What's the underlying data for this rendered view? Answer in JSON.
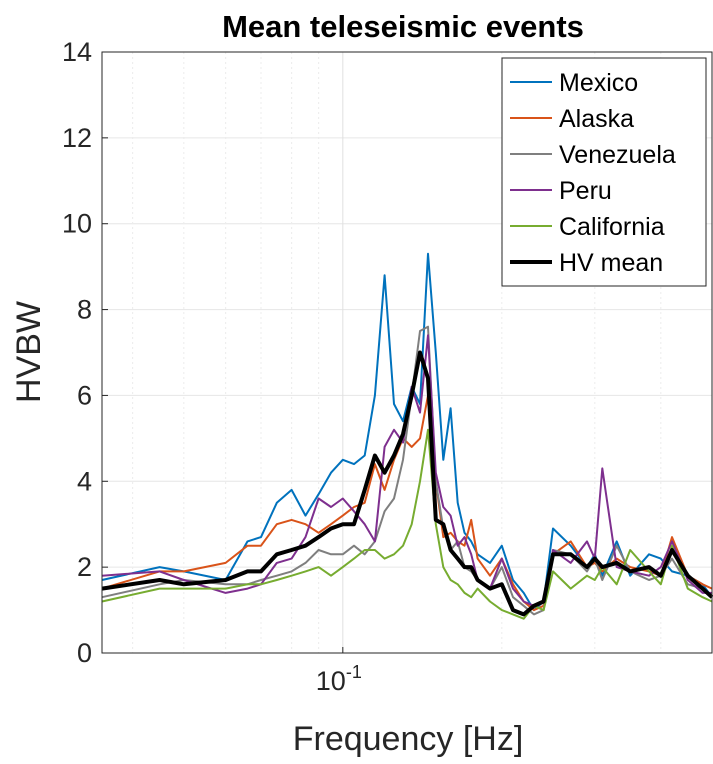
{
  "chart_data": {
    "type": "line",
    "title": "Mean teleseismic events",
    "xlabel": "Frequency [Hz]",
    "ylabel": "HVBW",
    "xscale": "log",
    "xlim": [
      0.035,
      0.5
    ],
    "ylim": [
      0,
      14
    ],
    "yticks": [
      0,
      2,
      4,
      6,
      8,
      10,
      12,
      14
    ],
    "ytick_labels": [
      "0",
      "2",
      "4",
      "6",
      "8",
      "10",
      "12",
      "14"
    ],
    "xticks": [
      0.1
    ],
    "xtick_labels": [
      {
        "base": "10",
        "exp": "-1"
      }
    ],
    "grid": true,
    "legend_position": "top-right",
    "series": [
      {
        "name": "Mexico",
        "color": "#0072BD",
        "line_width": 2,
        "x": [
          0.035,
          0.045,
          0.05,
          0.06,
          0.066,
          0.07,
          0.075,
          0.08,
          0.085,
          0.09,
          0.095,
          0.1,
          0.105,
          0.11,
          0.115,
          0.12,
          0.125,
          0.13,
          0.135,
          0.14,
          0.145,
          0.15,
          0.155,
          0.16,
          0.165,
          0.17,
          0.175,
          0.18,
          0.19,
          0.2,
          0.21,
          0.22,
          0.23,
          0.24,
          0.25,
          0.27,
          0.29,
          0.3,
          0.31,
          0.33,
          0.35,
          0.38,
          0.4,
          0.42,
          0.45,
          0.48,
          0.5
        ],
        "y": [
          1.7,
          2.0,
          1.9,
          1.7,
          2.6,
          2.7,
          3.5,
          3.8,
          3.2,
          3.7,
          4.2,
          4.5,
          4.4,
          4.6,
          6.0,
          8.8,
          5.8,
          5.4,
          6.2,
          5.8,
          9.3,
          7.0,
          4.5,
          5.7,
          3.5,
          2.8,
          2.6,
          2.3,
          2.1,
          2.5,
          1.7,
          1.4,
          1.0,
          1.2,
          2.9,
          2.5,
          2.0,
          2.3,
          1.8,
          2.6,
          1.8,
          2.3,
          2.2,
          1.9,
          1.8,
          1.6,
          1.3
        ]
      },
      {
        "name": "Alaska",
        "color": "#D95319",
        "line_width": 2,
        "x": [
          0.035,
          0.045,
          0.05,
          0.06,
          0.066,
          0.07,
          0.075,
          0.08,
          0.085,
          0.09,
          0.095,
          0.1,
          0.105,
          0.11,
          0.115,
          0.12,
          0.125,
          0.13,
          0.135,
          0.14,
          0.145,
          0.15,
          0.155,
          0.16,
          0.165,
          0.17,
          0.175,
          0.18,
          0.19,
          0.2,
          0.21,
          0.22,
          0.23,
          0.24,
          0.25,
          0.27,
          0.29,
          0.3,
          0.31,
          0.33,
          0.35,
          0.38,
          0.4,
          0.42,
          0.45,
          0.48,
          0.5
        ],
        "y": [
          1.5,
          1.9,
          1.9,
          2.1,
          2.5,
          2.5,
          3.0,
          3.1,
          3.0,
          2.8,
          3.0,
          3.2,
          3.4,
          3.5,
          4.4,
          3.8,
          4.5,
          5.0,
          4.8,
          5.0,
          6.0,
          4.0,
          2.7,
          2.8,
          2.6,
          2.5,
          3.1,
          2.2,
          1.8,
          2.2,
          1.6,
          1.2,
          1.0,
          1.1,
          2.3,
          2.6,
          2.0,
          2.1,
          1.9,
          2.2,
          2.0,
          1.9,
          1.8,
          2.7,
          1.8,
          1.6,
          1.5
        ]
      },
      {
        "name": "Venezuela",
        "color": "#7F7F7F",
        "line_width": 2,
        "x": [
          0.035,
          0.045,
          0.05,
          0.06,
          0.066,
          0.07,
          0.075,
          0.08,
          0.085,
          0.09,
          0.095,
          0.1,
          0.105,
          0.11,
          0.115,
          0.12,
          0.125,
          0.13,
          0.135,
          0.14,
          0.145,
          0.15,
          0.155,
          0.16,
          0.165,
          0.17,
          0.175,
          0.18,
          0.19,
          0.2,
          0.21,
          0.22,
          0.23,
          0.24,
          0.25,
          0.27,
          0.29,
          0.3,
          0.31,
          0.33,
          0.35,
          0.38,
          0.4,
          0.42,
          0.45,
          0.48,
          0.5
        ],
        "y": [
          1.3,
          1.6,
          1.7,
          1.6,
          1.6,
          1.7,
          1.8,
          1.9,
          2.1,
          2.4,
          2.3,
          2.3,
          2.5,
          2.3,
          2.6,
          3.3,
          3.6,
          4.5,
          6.0,
          7.5,
          7.6,
          4.0,
          2.9,
          2.4,
          2.6,
          2.0,
          1.9,
          1.7,
          1.5,
          2.0,
          1.3,
          1.1,
          0.9,
          1.0,
          2.4,
          2.3,
          1.9,
          2.2,
          1.7,
          2.5,
          1.9,
          1.7,
          1.8,
          2.2,
          1.6,
          1.5,
          1.3
        ]
      },
      {
        "name": "Peru",
        "color": "#7E2F8E",
        "line_width": 2,
        "x": [
          0.035,
          0.045,
          0.05,
          0.06,
          0.066,
          0.07,
          0.075,
          0.08,
          0.085,
          0.09,
          0.095,
          0.1,
          0.105,
          0.11,
          0.115,
          0.12,
          0.125,
          0.13,
          0.135,
          0.14,
          0.145,
          0.15,
          0.155,
          0.16,
          0.165,
          0.17,
          0.175,
          0.18,
          0.19,
          0.2,
          0.21,
          0.22,
          0.23,
          0.24,
          0.25,
          0.27,
          0.29,
          0.3,
          0.31,
          0.33,
          0.35,
          0.38,
          0.4,
          0.42,
          0.45,
          0.48,
          0.5
        ],
        "y": [
          1.8,
          1.9,
          1.7,
          1.4,
          1.5,
          1.6,
          2.1,
          2.2,
          2.7,
          3.6,
          3.4,
          3.6,
          3.3,
          3.0,
          2.6,
          4.8,
          5.2,
          4.9,
          6.2,
          5.6,
          7.4,
          4.2,
          3.4,
          3.2,
          2.5,
          2.7,
          2.3,
          1.7,
          1.5,
          2.2,
          1.5,
          1.2,
          1.1,
          1.2,
          2.4,
          2.1,
          2.6,
          2.2,
          4.3,
          2.0,
          1.9,
          1.8,
          2.0,
          2.6,
          1.7,
          1.4,
          1.4
        ]
      },
      {
        "name": "California",
        "color": "#77AC30",
        "line_width": 2,
        "x": [
          0.035,
          0.045,
          0.05,
          0.06,
          0.066,
          0.07,
          0.075,
          0.08,
          0.085,
          0.09,
          0.095,
          0.1,
          0.105,
          0.11,
          0.115,
          0.12,
          0.125,
          0.13,
          0.135,
          0.14,
          0.145,
          0.15,
          0.155,
          0.16,
          0.165,
          0.17,
          0.175,
          0.18,
          0.19,
          0.2,
          0.21,
          0.22,
          0.23,
          0.24,
          0.25,
          0.27,
          0.29,
          0.3,
          0.31,
          0.33,
          0.35,
          0.38,
          0.4,
          0.42,
          0.45,
          0.48,
          0.5
        ],
        "y": [
          1.2,
          1.5,
          1.5,
          1.5,
          1.6,
          1.6,
          1.7,
          1.8,
          1.9,
          2.0,
          1.8,
          2.0,
          2.2,
          2.4,
          2.4,
          2.2,
          2.3,
          2.5,
          3.0,
          4.0,
          5.2,
          3.0,
          2.0,
          1.7,
          1.6,
          1.4,
          1.3,
          1.5,
          1.2,
          1.0,
          0.9,
          0.8,
          1.1,
          1.0,
          1.9,
          1.5,
          1.8,
          1.7,
          2.0,
          1.6,
          2.4,
          1.9,
          1.6,
          2.5,
          1.5,
          1.3,
          1.2
        ]
      },
      {
        "name": "HV mean",
        "color": "#000000",
        "line_width": 4,
        "x": [
          0.035,
          0.045,
          0.05,
          0.06,
          0.066,
          0.07,
          0.075,
          0.08,
          0.085,
          0.09,
          0.095,
          0.1,
          0.105,
          0.11,
          0.115,
          0.12,
          0.125,
          0.13,
          0.135,
          0.14,
          0.145,
          0.15,
          0.155,
          0.16,
          0.165,
          0.17,
          0.175,
          0.18,
          0.19,
          0.2,
          0.21,
          0.22,
          0.23,
          0.24,
          0.25,
          0.27,
          0.29,
          0.3,
          0.31,
          0.33,
          0.35,
          0.38,
          0.4,
          0.42,
          0.45,
          0.48,
          0.5
        ],
        "y": [
          1.5,
          1.7,
          1.6,
          1.7,
          1.9,
          1.9,
          2.3,
          2.4,
          2.5,
          2.7,
          2.9,
          3.0,
          3.0,
          3.8,
          4.6,
          4.2,
          4.6,
          5.1,
          6.0,
          7.0,
          6.4,
          3.1,
          3.0,
          2.4,
          2.2,
          2.0,
          2.0,
          1.7,
          1.5,
          1.6,
          1.0,
          0.9,
          1.1,
          1.2,
          2.3,
          2.3,
          2.0,
          2.2,
          2.0,
          2.1,
          1.9,
          2.0,
          1.8,
          2.4,
          1.8,
          1.5,
          1.3
        ]
      }
    ]
  }
}
